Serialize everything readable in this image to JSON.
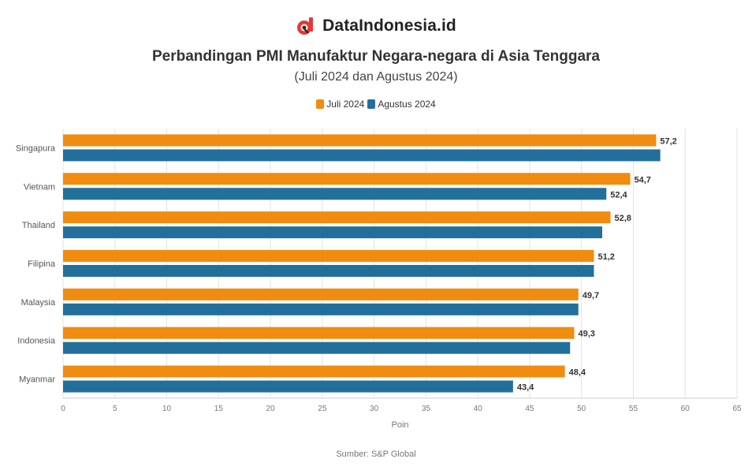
{
  "brand": {
    "name": "DataIndonesia.id",
    "logo_icon": "dataindonesia-logo-icon",
    "logo_color": "#e53935"
  },
  "header": {
    "title": "Perbandingan PMI Manufaktur Negara-negara di Asia Tenggara",
    "subtitle": "(Juli 2024 dan Agustus 2024)"
  },
  "legend": [
    {
      "label": "Juli 2024",
      "color": "#f08c10"
    },
    {
      "label": "Agustus 2024",
      "color": "#236f9c"
    }
  ],
  "source": "Sumber: S&P Global",
  "chart_data": {
    "type": "bar",
    "orientation": "horizontal",
    "categories": [
      "Singapura",
      "Vietnam",
      "Thailand",
      "Filipina",
      "Malaysia",
      "Indonesia",
      "Myanmar"
    ],
    "series": [
      {
        "name": "Juli 2024",
        "color": "#f08c10",
        "values": [
          57.2,
          54.7,
          52.8,
          51.2,
          49.7,
          49.3,
          48.4
        ],
        "labels": [
          "57,2",
          "54,7",
          "52,8",
          "51,2",
          "49,7",
          "49,3",
          "48,4"
        ]
      },
      {
        "name": "Agustus 2024",
        "color": "#236f9c",
        "values": [
          57.6,
          52.4,
          52.0,
          51.2,
          49.7,
          48.9,
          43.4
        ],
        "labels": [
          "",
          "52,4",
          "",
          "",
          "",
          "",
          "43,4"
        ]
      }
    ],
    "xlim": [
      0,
      65
    ],
    "xticks": [
      0,
      5,
      10,
      15,
      20,
      25,
      30,
      35,
      40,
      45,
      50,
      55,
      60,
      65
    ],
    "xlabel": "Poin",
    "ylabel": "",
    "grid": "vertical",
    "legend_position": "top-center"
  }
}
